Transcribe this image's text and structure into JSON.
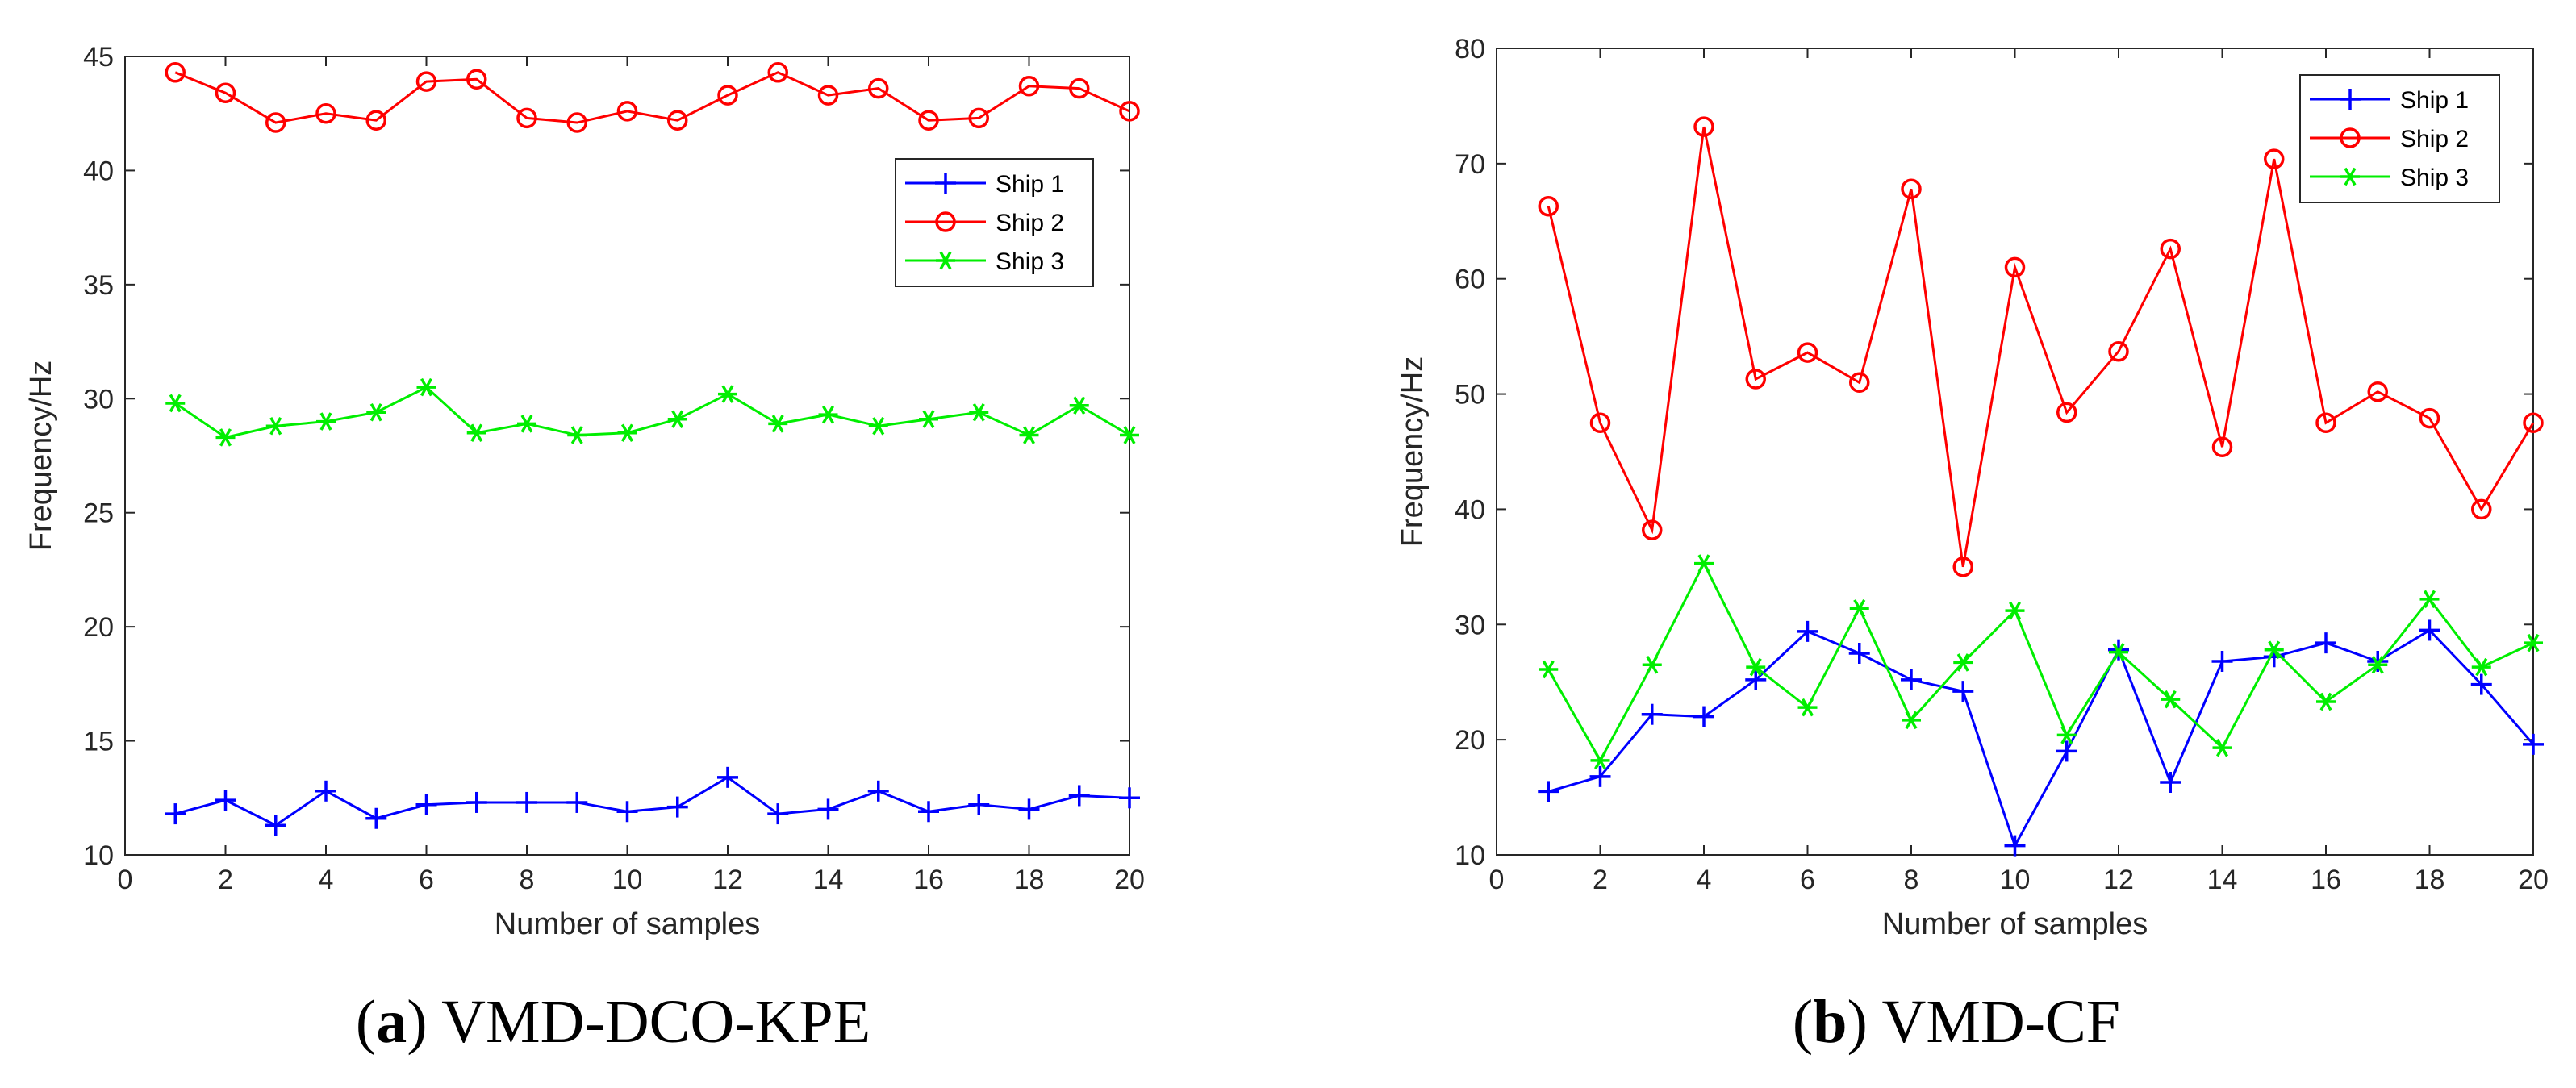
{
  "chart_data": [
    {
      "type": "line",
      "panel": "a",
      "caption_letter": "a",
      "caption_text": "VMD-DCO-KPE",
      "xlabel": "Number of samples",
      "ylabel": "Frequency/Hz",
      "xlim": [
        0,
        20
      ],
      "ylim": [
        10,
        45
      ],
      "xticks": [
        0,
        2,
        4,
        6,
        8,
        10,
        12,
        14,
        16,
        18,
        20
      ],
      "yticks": [
        10,
        15,
        20,
        25,
        30,
        35,
        40,
        45
      ],
      "x": [
        1,
        2,
        3,
        4,
        5,
        6,
        7,
        8,
        9,
        10,
        11,
        12,
        13,
        14,
        15,
        16,
        17,
        18,
        19,
        20
      ],
      "legend_position": "upper-right",
      "series": [
        {
          "name": "Ship 1",
          "color": "#0000ff",
          "marker": "plus",
          "values": [
            11.8,
            12.4,
            11.3,
            12.8,
            11.6,
            12.2,
            12.3,
            12.3,
            12.3,
            11.9,
            12.1,
            13.4,
            11.8,
            12.0,
            12.8,
            11.9,
            12.2,
            12.0,
            12.6,
            12.5
          ]
        },
        {
          "name": "Ship 2",
          "color": "#ff0000",
          "marker": "circle",
          "values": [
            44.3,
            43.4,
            42.1,
            42.5,
            42.2,
            43.9,
            44.0,
            42.3,
            42.1,
            42.6,
            42.2,
            43.3,
            44.3,
            43.3,
            43.6,
            42.2,
            42.3,
            43.7,
            43.6,
            42.6
          ]
        },
        {
          "name": "Ship 3",
          "color": "#00ee00",
          "marker": "asterisk",
          "values": [
            29.8,
            28.3,
            28.8,
            29.0,
            29.4,
            30.5,
            28.5,
            28.9,
            28.4,
            28.5,
            29.1,
            30.2,
            28.9,
            29.3,
            28.8,
            29.1,
            29.4,
            28.4,
            29.7,
            28.4
          ]
        }
      ]
    },
    {
      "type": "line",
      "panel": "b",
      "caption_letter": "b",
      "caption_text": "VMD-CF",
      "xlabel": "Number of samples",
      "ylabel": "Frequency/Hz",
      "xlim": [
        0,
        20
      ],
      "ylim": [
        10,
        80
      ],
      "xticks": [
        0,
        2,
        4,
        6,
        8,
        10,
        12,
        14,
        16,
        18,
        20
      ],
      "yticks": [
        10,
        20,
        30,
        40,
        50,
        60,
        70,
        80
      ],
      "x": [
        1,
        2,
        3,
        4,
        5,
        6,
        7,
        8,
        9,
        10,
        11,
        12,
        13,
        14,
        15,
        16,
        17,
        18,
        19,
        20
      ],
      "legend_position": "upper-right",
      "series": [
        {
          "name": "Ship 1",
          "color": "#0000ff",
          "marker": "plus",
          "values": [
            15.5,
            16.8,
            22.2,
            22.0,
            25.2,
            29.4,
            27.5,
            25.2,
            24.2,
            10.8,
            19.0,
            27.8,
            16.3,
            26.8,
            27.2,
            28.4,
            26.8,
            29.5,
            24.8,
            19.6
          ]
        },
        {
          "name": "Ship 2",
          "color": "#ff0000",
          "marker": "circle",
          "values": [
            66.3,
            47.5,
            38.2,
            73.2,
            51.3,
            53.6,
            51.0,
            67.8,
            35.0,
            61.0,
            48.4,
            53.7,
            62.6,
            45.4,
            70.4,
            47.5,
            50.2,
            47.9,
            40.0,
            47.5
          ]
        },
        {
          "name": "Ship 3",
          "color": "#00ee00",
          "marker": "asterisk",
          "values": [
            26.1,
            18.2,
            26.5,
            35.3,
            26.3,
            22.8,
            31.4,
            21.7,
            26.7,
            31.2,
            20.4,
            27.6,
            23.5,
            19.3,
            27.8,
            23.3,
            26.5,
            32.2,
            26.3,
            28.4
          ]
        }
      ]
    }
  ]
}
